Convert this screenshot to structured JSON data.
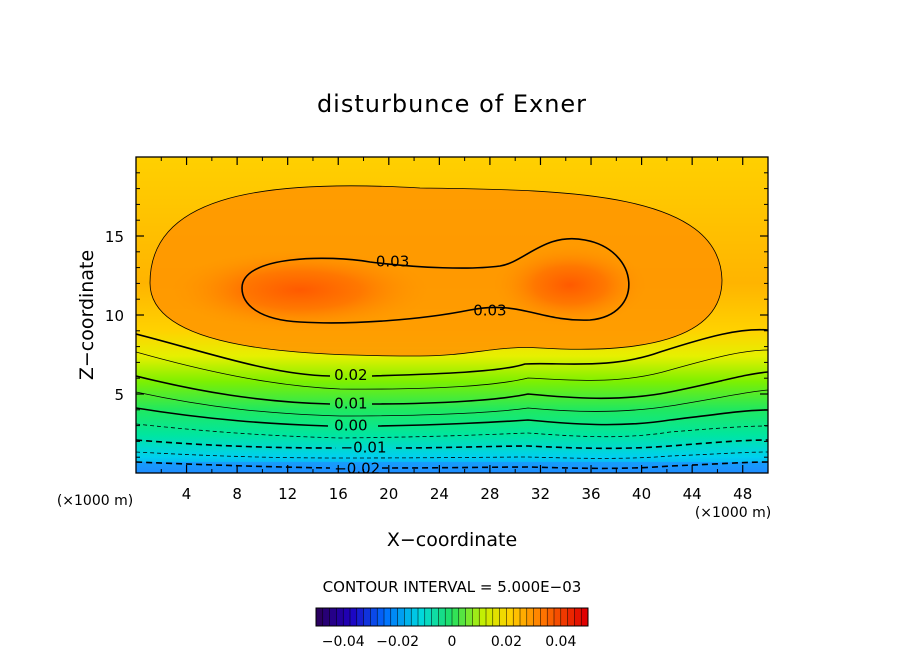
{
  "chart_data": {
    "type": "contour",
    "title": "disturbunce of Exner",
    "xlabel": "X−coordinate",
    "ylabel": "Z−coordinate",
    "x_unit_left": "(×1000 m)",
    "x_unit_right": "(×1000 m)",
    "xlim": [
      0,
      50
    ],
    "ylim": [
      0,
      20
    ],
    "x_ticks": [
      4,
      8,
      12,
      16,
      20,
      24,
      28,
      32,
      36,
      40,
      44,
      48
    ],
    "y_ticks": [
      5,
      10,
      15
    ],
    "contour_interval": 0.005,
    "contour_interval_text": "CONTOUR INTERVAL = 5.000E−03",
    "contour_labels": [
      {
        "text": "0.03",
        "x": 20.3,
        "z": 13.4
      },
      {
        "text": "0.03",
        "x": 28.0,
        "z": 10.3
      },
      {
        "text": "0.02",
        "x": 17.0,
        "z": 6.2
      },
      {
        "text": "0.01",
        "x": 17.0,
        "z": 4.4
      },
      {
        "text": "0.00",
        "x": 17.0,
        "z": 3.0
      },
      {
        "text": "−0.01",
        "x": 18.0,
        "z": 1.6
      },
      {
        "text": "−0.02",
        "x": 17.5,
        "z": 0.3
      }
    ],
    "colorbar": {
      "range": [
        -0.05,
        0.05
      ],
      "tick_labels": [
        "−0.04",
        "−0.02",
        "0",
        "0.02",
        "0.04"
      ],
      "tick_values": [
        -0.04,
        -0.02,
        0,
        0.02,
        0.04
      ]
    }
  }
}
